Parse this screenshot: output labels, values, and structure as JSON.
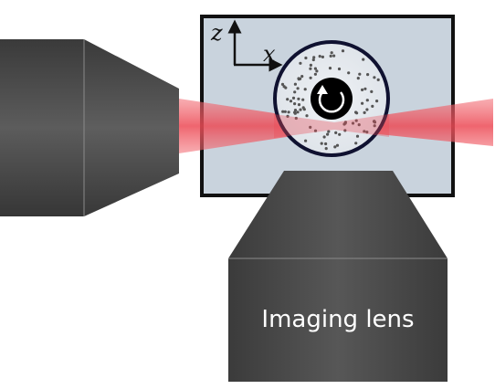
{
  "diagram": {
    "imaging_lens_label": "Imaging lens",
    "axes": {
      "vertical_label": "z",
      "horizontal_label": "x"
    },
    "colors": {
      "lens_dark": "#3c3c3c",
      "lens_mid": "#5a5a5a",
      "chamber_fill": "#c9d3dd",
      "chamber_border": "#111111",
      "beam": "#f26b73",
      "ring_border": "#0f1130",
      "particles": "#555555",
      "core": "#000000"
    },
    "icons": {
      "rotation": "rotation-arrow-icon"
    }
  }
}
